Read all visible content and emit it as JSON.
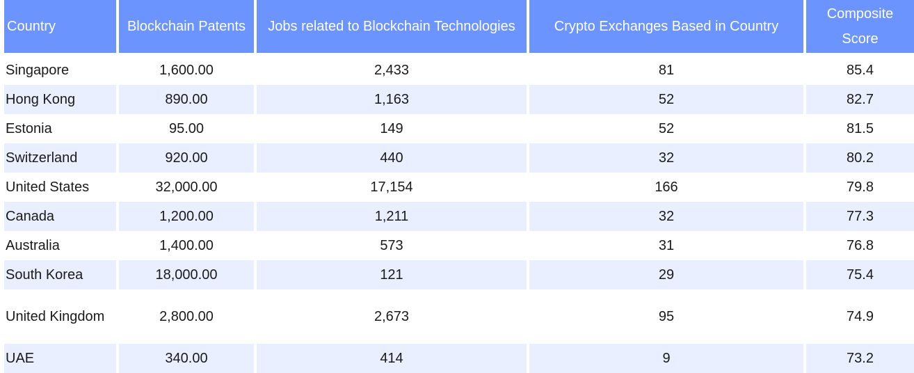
{
  "table": {
    "headers": [
      "Country",
      "Blockchain Patents",
      "Jobs related to Blockchain Technologies",
      "Crypto Exchanges Based in Country",
      "Composite Score"
    ],
    "rows": [
      [
        "Singapore",
        "1,600.00",
        "2,433",
        "81",
        "85.4"
      ],
      [
        "Hong Kong",
        "890.00",
        "1,163",
        "52",
        "82.7"
      ],
      [
        "Estonia",
        "95.00",
        "149",
        "52",
        "81.5"
      ],
      [
        "Switzerland",
        "920.00",
        "440",
        "32",
        "80.2"
      ],
      [
        "United States",
        "32,000.00",
        "17,154",
        "166",
        "79.8"
      ],
      [
        "Canada",
        "1,200.00",
        "1,211",
        "32",
        "77.3"
      ],
      [
        "Australia",
        "1,400.00",
        "573",
        "31",
        "76.8"
      ],
      [
        "South Korea",
        "18,000.00",
        "121",
        "29",
        "75.4"
      ],
      [
        "United Kingdom",
        "2,800.00",
        "2,673",
        "95",
        "74.9"
      ],
      [
        "UAE",
        "340.00",
        "414",
        "9",
        "73.2"
      ]
    ]
  }
}
